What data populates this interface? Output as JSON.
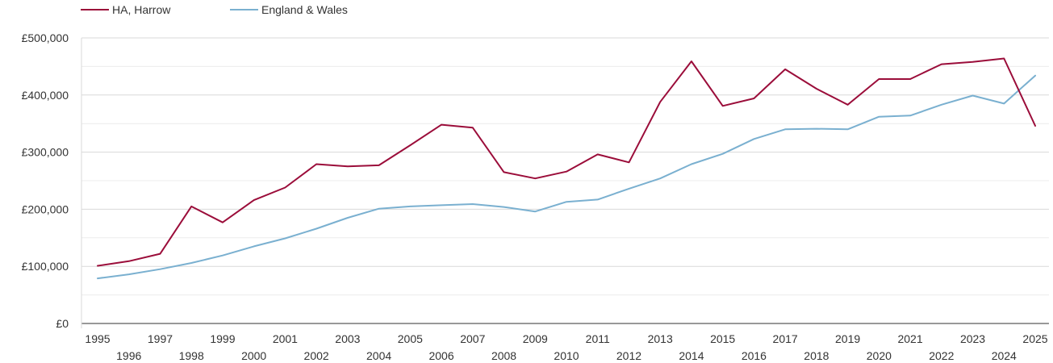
{
  "chart_data": {
    "type": "line",
    "x": [
      1995,
      1996,
      1997,
      1998,
      1999,
      2000,
      2001,
      2002,
      2003,
      2004,
      2005,
      2006,
      2007,
      2008,
      2009,
      2010,
      2011,
      2012,
      2013,
      2014,
      2015,
      2016,
      2017,
      2018,
      2019,
      2020,
      2021,
      2022,
      2023,
      2024,
      2025
    ],
    "series": [
      {
        "name": "HA, Harrow",
        "color": "#9b0d3a",
        "values": [
          101000,
          109000,
          122000,
          205000,
          177000,
          216000,
          238000,
          279000,
          275000,
          277000,
          312000,
          348000,
          343000,
          265000,
          254000,
          266000,
          296000,
          282000,
          388000,
          459000,
          381000,
          394000,
          445000,
          411000,
          383000,
          428000,
          428000,
          454000,
          458000,
          464000,
          346000
        ]
      },
      {
        "name": "England & Wales",
        "color": "#7ab0d0",
        "values": [
          79000,
          86000,
          95000,
          106000,
          119000,
          135000,
          149000,
          166000,
          185000,
          201000,
          205000,
          207000,
          209000,
          204000,
          196000,
          213000,
          217000,
          236000,
          254000,
          279000,
          297000,
          323000,
          340000,
          341000,
          340000,
          362000,
          364000,
          383000,
          399000,
          385000,
          434000
        ]
      }
    ],
    "y_ticks": [
      "£0",
      "£100,000",
      "£200,000",
      "£300,000",
      "£400,000",
      "£500,000"
    ],
    "x_ticks_top": [
      "1995",
      "1997",
      "1999",
      "2001",
      "2003",
      "2005",
      "2007",
      "2009",
      "2011",
      "2013",
      "2015",
      "2017",
      "2019",
      "2021",
      "2023",
      "2025"
    ],
    "x_ticks_bottom": [
      "1996",
      "1998",
      "2000",
      "2002",
      "2004",
      "2006",
      "2008",
      "2010",
      "2012",
      "2014",
      "2016",
      "2018",
      "2020",
      "2022",
      "2024"
    ],
    "ylim": [
      0,
      500000
    ],
    "grid": true,
    "legend": "top-left"
  }
}
